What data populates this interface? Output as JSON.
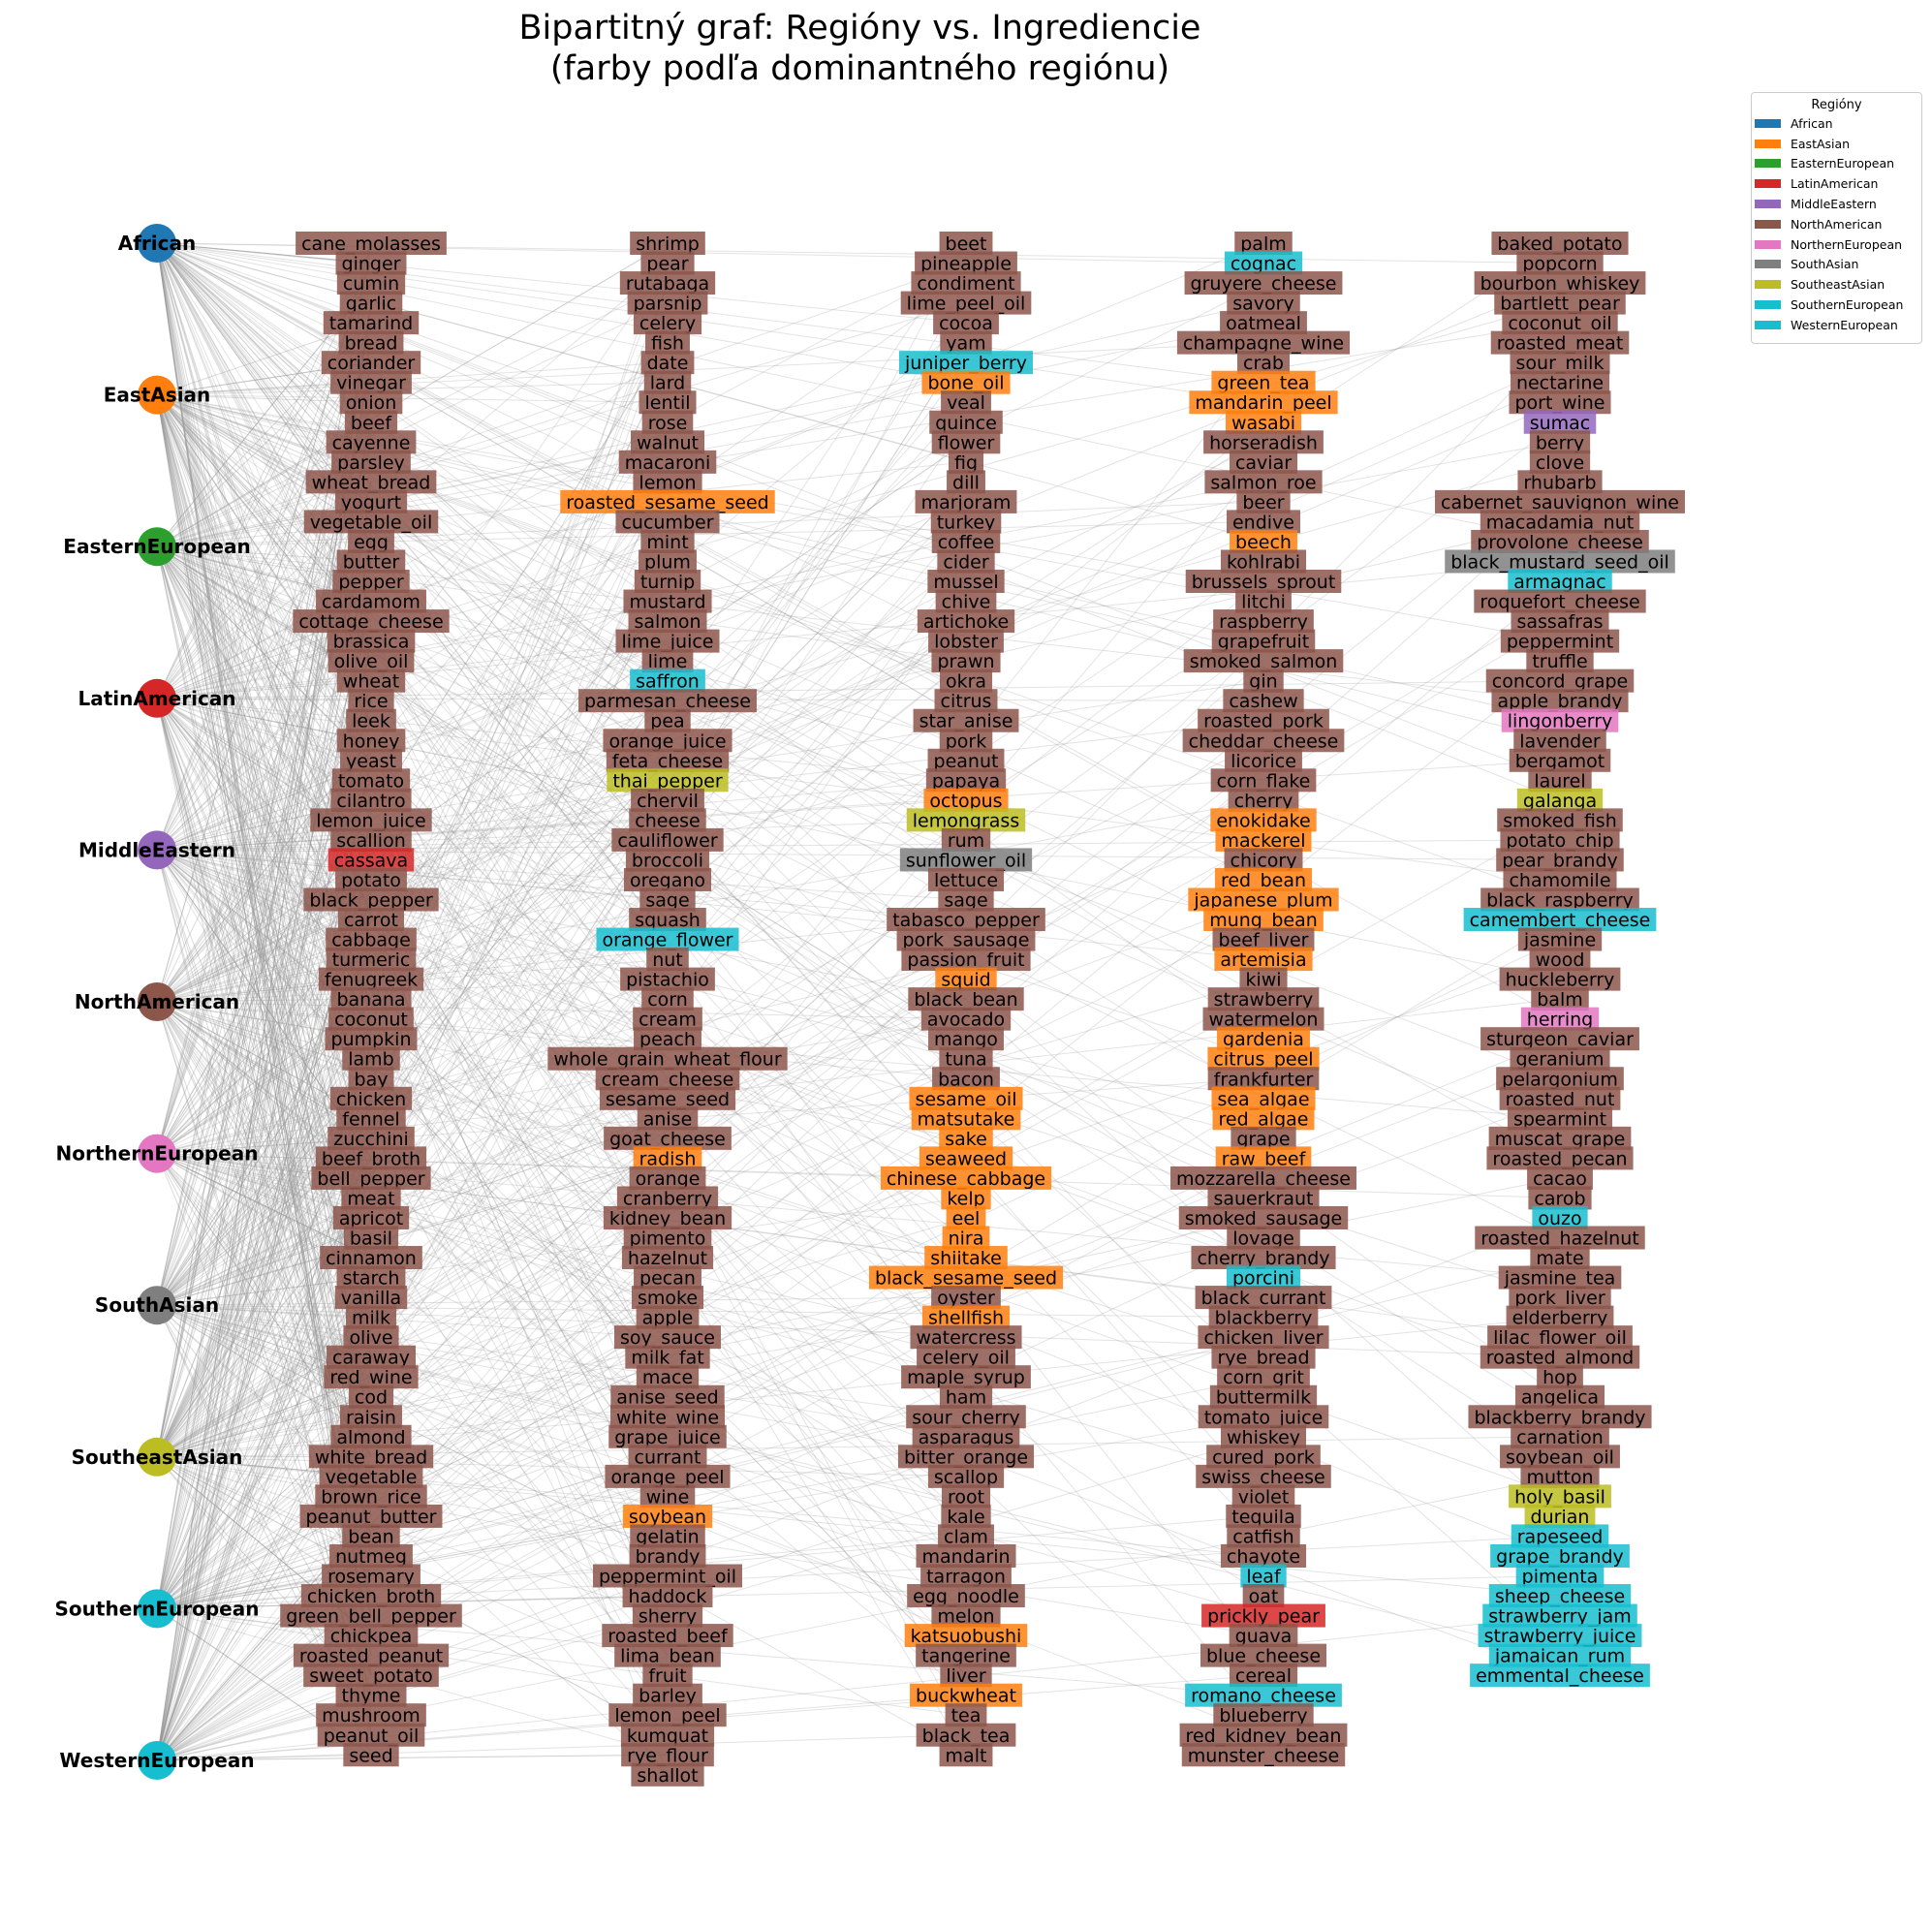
{
  "title_line1": "Bipartitný graf: Regióny vs. Ingrediencie",
  "title_line2": "(farby podľa dominantného regiónu)",
  "legend": {
    "title": "Regióny",
    "items": [
      {
        "label": "African",
        "color": "#1f77b4"
      },
      {
        "label": "EastAsian",
        "color": "#ff7f0e"
      },
      {
        "label": "EasternEuropean",
        "color": "#2ca02c"
      },
      {
        "label": "LatinAmerican",
        "color": "#d62728"
      },
      {
        "label": "MiddleEastern",
        "color": "#9467bd"
      },
      {
        "label": "NorthAmerican",
        "color": "#8c564b"
      },
      {
        "label": "NorthernEuropean",
        "color": "#e377c2"
      },
      {
        "label": "SouthAsian",
        "color": "#7f7f7f"
      },
      {
        "label": "SoutheastAsian",
        "color": "#bcbd22"
      },
      {
        "label": "SouthernEuropean",
        "color": "#17becf"
      },
      {
        "label": "WesternEuropean",
        "color": "#17becf"
      }
    ]
  },
  "regions": [
    {
      "name": "African",
      "color": "#1f77b4"
    },
    {
      "name": "EastAsian",
      "color": "#ff7f0e"
    },
    {
      "name": "EasternEuropean",
      "color": "#2ca02c"
    },
    {
      "name": "LatinAmerican",
      "color": "#d62728"
    },
    {
      "name": "MiddleEastern",
      "color": "#9467bd"
    },
    {
      "name": "NorthAmerican",
      "color": "#8c564b"
    },
    {
      "name": "NorthernEuropean",
      "color": "#e377c2"
    },
    {
      "name": "SouthAsian",
      "color": "#7f7f7f"
    },
    {
      "name": "SoutheastAsian",
      "color": "#bcbd22"
    },
    {
      "name": "SouthernEuropean",
      "color": "#17becf"
    },
    {
      "name": "WesternEuropean",
      "color": "#17becf"
    }
  ],
  "ingredient_columns": [
    [
      "cane_molasses",
      "ginger",
      "cumin",
      "garlic",
      "tamarind",
      "bread",
      "coriander",
      "vinegar",
      "onion",
      "beef",
      "cayenne",
      "parsley",
      "wheat_bread",
      "yogurt",
      "vegetable_oil",
      "egg",
      "butter",
      "pepper",
      "cardamom",
      "cottage_cheese",
      "brassica",
      "olive_oil",
      "wheat",
      "rice",
      "leek",
      "honey",
      "yeast",
      "tomato",
      "cilantro",
      "lemon_juice",
      "scallion",
      {
        "n": "cassava",
        "r": "LatinAmerican"
      },
      "potato",
      "black_pepper",
      "carrot",
      "cabbage",
      "turmeric",
      "fenugreek",
      "banana",
      "coconut",
      "pumpkin",
      "lamb",
      "bay",
      "chicken",
      "fennel",
      "zucchini",
      "beef_broth",
      "bell_pepper",
      "meat",
      "apricot",
      "basil",
      "cinnamon",
      "starch",
      "vanilla",
      "milk",
      "olive",
      "caraway",
      "red_wine",
      "cod",
      "raisin",
      "almond",
      "white_bread",
      "vegetable",
      "brown_rice",
      "peanut_butter",
      "bean",
      "nutmeg",
      "rosemary",
      "chicken_broth",
      "green_bell_pepper",
      "chickpea",
      "roasted_peanut",
      "sweet_potato",
      "thyme",
      "mushroom",
      "peanut_oil",
      "seed"
    ],
    [
      "shrimp",
      "pear",
      "rutabaga",
      "parsnip",
      "celery",
      "fish",
      "date",
      "lard",
      "lentil",
      "rose",
      "walnut",
      "macaroni",
      "lemon",
      {
        "n": "roasted_sesame_seed",
        "r": "EastAsian"
      },
      "cucumber",
      "mint",
      "plum",
      "turnip",
      "mustard",
      "salmon",
      "lime_juice",
      "lime",
      {
        "n": "saffron",
        "r": "SouthernEuropean"
      },
      "parmesan_cheese",
      "pea",
      "orange_juice",
      "feta_cheese",
      {
        "n": "thai_pepper",
        "r": "SoutheastAsian"
      },
      "chervil",
      "cheese",
      "cauliflower",
      "broccoli",
      "oregano",
      "sage",
      "squash",
      {
        "n": "orange_flower",
        "r": "SouthernEuropean"
      },
      "nut",
      "pistachio",
      "corn",
      "cream",
      "peach",
      "whole_grain_wheat_flour",
      "cream_cheese",
      "sesame_seed",
      "anise",
      "goat_cheese",
      {
        "n": "radish",
        "r": "EastAsian"
      },
      "orange",
      "cranberry",
      "kidney_bean",
      "pimento",
      "hazelnut",
      "pecan",
      "smoke",
      "apple",
      "soy_sauce",
      "milk_fat",
      "mace",
      "anise_seed",
      "white_wine",
      "grape_juice",
      "currant",
      "orange_peel",
      "wine",
      {
        "n": "soybean",
        "r": "EastAsian"
      },
      "gelatin",
      "brandy",
      "peppermint_oil",
      "haddock",
      "sherry",
      "roasted_beef",
      "lima_bean",
      "fruit",
      "barley",
      "lemon_peel",
      "kumquat",
      "rye_flour",
      "shallot"
    ],
    [
      "beet",
      "pineapple",
      "condiment",
      "lime_peel_oil",
      "cocoa",
      "yam",
      {
        "n": "juniper_berry",
        "r": "SouthernEuropean"
      },
      {
        "n": "bone_oil",
        "r": "EastAsian"
      },
      "veal",
      "quince",
      "flower",
      "fig",
      "dill",
      "marjoram",
      "turkey",
      "coffee",
      "cider",
      "mussel",
      "chive",
      "artichoke",
      "lobster",
      "prawn",
      "okra",
      "citrus",
      "star_anise",
      "pork",
      "peanut",
      "papaya",
      {
        "n": "octopus",
        "r": "EastAsian"
      },
      {
        "n": "lemongrass",
        "r": "SoutheastAsian"
      },
      "rum",
      {
        "n": "sunflower_oil",
        "r": "SouthAsian"
      },
      "lettuce",
      "sage",
      "tabasco_pepper",
      "pork_sausage",
      "passion_fruit",
      {
        "n": "squid",
        "r": "EastAsian"
      },
      "black_bean",
      "avocado",
      "mango",
      "tuna",
      "bacon",
      {
        "n": "sesame_oil",
        "r": "EastAsian"
      },
      {
        "n": "matsutake",
        "r": "EastAsian"
      },
      {
        "n": "sake",
        "r": "EastAsian"
      },
      {
        "n": "seaweed",
        "r": "EastAsian"
      },
      {
        "n": "chinese_cabbage",
        "r": "EastAsian"
      },
      {
        "n": "kelp",
        "r": "EastAsian"
      },
      {
        "n": "eel",
        "r": "EastAsian"
      },
      {
        "n": "nira",
        "r": "EastAsian"
      },
      {
        "n": "shiitake",
        "r": "EastAsian"
      },
      {
        "n": "black_sesame_seed",
        "r": "EastAsian"
      },
      "oyster",
      {
        "n": "shellfish",
        "r": "EastAsian"
      },
      "watercress",
      "celery_oil",
      "maple_syrup",
      "ham",
      "sour_cherry",
      "asparagus",
      "bitter_orange",
      "scallop",
      "root",
      "kale",
      "clam",
      "mandarin",
      "tarragon",
      "egg_noodle",
      "melon",
      {
        "n": "katsuobushi",
        "r": "EastAsian"
      },
      "tangerine",
      "liver",
      {
        "n": "buckwheat",
        "r": "EastAsian"
      },
      "tea",
      "black_tea",
      "malt"
    ],
    [
      "palm",
      {
        "n": "cognac",
        "r": "SouthernEuropean"
      },
      "gruyere_cheese",
      "savory",
      "oatmeal",
      "champagne_wine",
      "crab",
      {
        "n": "green_tea",
        "r": "EastAsian"
      },
      {
        "n": "mandarin_peel",
        "r": "EastAsian"
      },
      {
        "n": "wasabi",
        "r": "EastAsian"
      },
      "horseradish",
      "caviar",
      "salmon_roe",
      "beer",
      "endive",
      {
        "n": "beech",
        "r": "EastAsian"
      },
      "kohlrabi",
      "brussels_sprout",
      "litchi",
      "raspberry",
      "grapefruit",
      "smoked_salmon",
      "gin",
      "cashew",
      "roasted_pork",
      "cheddar_cheese",
      "licorice",
      "corn_flake",
      "cherry",
      {
        "n": "enokidake",
        "r": "EastAsian"
      },
      {
        "n": "mackerel",
        "r": "EastAsian"
      },
      "chicory",
      {
        "n": "red_bean",
        "r": "EastAsian"
      },
      {
        "n": "japanese_plum",
        "r": "EastAsian"
      },
      {
        "n": "mung_bean",
        "r": "EastAsian"
      },
      "beef_liver",
      {
        "n": "artemisia",
        "r": "EastAsian"
      },
      "kiwi",
      "strawberry",
      "watermelon",
      {
        "n": "gardenia",
        "r": "EastAsian"
      },
      {
        "n": "citrus_peel",
        "r": "EastAsian"
      },
      "frankfurter",
      {
        "n": "sea_algae",
        "r": "EastAsian"
      },
      {
        "n": "red_algae",
        "r": "EastAsian"
      },
      "grape",
      {
        "n": "raw_beef",
        "r": "EastAsian"
      },
      "mozzarella_cheese",
      "sauerkraut",
      "smoked_sausage",
      "lovage",
      "cherry_brandy",
      {
        "n": "porcini",
        "r": "SouthernEuropean"
      },
      "black_currant",
      "blackberry",
      "chicken_liver",
      "rye_bread",
      "corn_grit",
      "buttermilk",
      "tomato_juice",
      "whiskey",
      "cured_pork",
      "swiss_cheese",
      "violet",
      "tequila",
      "catfish",
      "chayote",
      {
        "n": "leaf",
        "r": "SouthernEuropean"
      },
      "oat",
      {
        "n": "prickly_pear",
        "r": "LatinAmerican"
      },
      "guava",
      "blue_cheese",
      "cereal",
      {
        "n": "romano_cheese",
        "r": "SouthernEuropean"
      },
      "blueberry",
      "red_kidney_bean",
      "munster_cheese"
    ],
    [
      "baked_potato",
      "popcorn",
      "bourbon_whiskey",
      "bartlett_pear",
      "coconut_oil",
      "roasted_meat",
      "sour_milk",
      "nectarine",
      "port_wine",
      {
        "n": "sumac",
        "r": "MiddleEastern"
      },
      "berry",
      "clove",
      "rhubarb",
      "cabernet_sauvignon_wine",
      "macadamia_nut",
      "provolone_cheese",
      {
        "n": "black_mustard_seed_oil",
        "r": "SouthAsian"
      },
      {
        "n": "armagnac",
        "r": "SouthernEuropean"
      },
      "roquefort_cheese",
      "sassafras",
      "peppermint",
      "truffle",
      "concord_grape",
      "apple_brandy",
      {
        "n": "lingonberry",
        "r": "NorthernEuropean"
      },
      "lavender",
      "bergamot",
      "laurel",
      {
        "n": "galanga",
        "r": "SoutheastAsian"
      },
      "smoked_fish",
      "potato_chip",
      "pear_brandy",
      "chamomile",
      "black_raspberry",
      {
        "n": "camembert_cheese",
        "r": "SouthernEuropean"
      },
      "jasmine",
      "wood",
      "huckleberry",
      "balm",
      {
        "n": "herring",
        "r": "NorthernEuropean"
      },
      "sturgeon_caviar",
      "geranium",
      "pelargonium",
      "roasted_nut",
      "spearmint",
      "muscat_grape",
      "roasted_pecan",
      "cacao",
      "carob",
      {
        "n": "ouzo",
        "r": "SouthernEuropean"
      },
      "roasted_hazelnut",
      "mate",
      "jasmine_tea",
      "pork_liver",
      "elderberry",
      "lilac_flower_oil",
      "roasted_almond",
      "hop",
      "angelica",
      "blackberry_brandy",
      "carnation",
      "soybean_oil",
      "mutton",
      {
        "n": "holy_basil",
        "r": "SoutheastAsian"
      },
      {
        "n": "durian",
        "r": "SoutheastAsian"
      },
      {
        "n": "rapeseed",
        "r": "SouthernEuropean"
      },
      {
        "n": "grape_brandy",
        "r": "SouthernEuropean"
      },
      {
        "n": "pimenta",
        "r": "SouthernEuropean"
      },
      {
        "n": "sheep_cheese",
        "r": "SouthernEuropean"
      },
      {
        "n": "strawberry_jam",
        "r": "SouthernEuropean"
      },
      {
        "n": "strawberry_juice",
        "r": "SouthernEuropean"
      },
      {
        "n": "jamaican_rum",
        "r": "SouthernEuropean"
      },
      {
        "n": "emmental_cheese",
        "r": "SouthernEuropean"
      }
    ]
  ]
}
